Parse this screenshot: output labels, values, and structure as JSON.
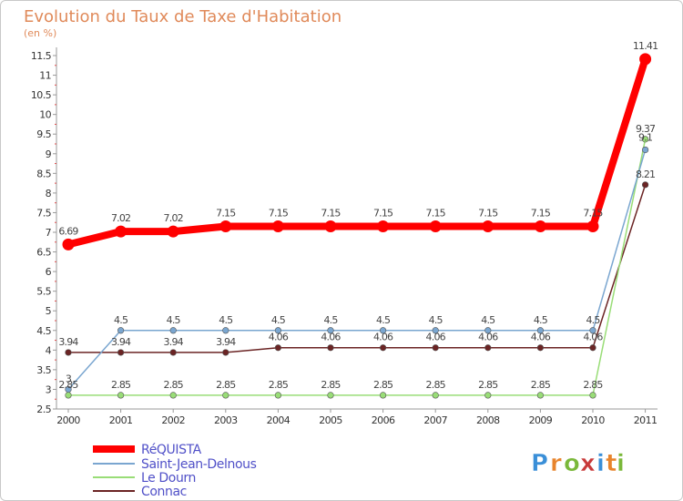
{
  "chart_data": {
    "type": "line",
    "title": "Evolution du Taux de Taxe d'Habitation",
    "subtitle": "(en %)",
    "xlabel": "",
    "ylabel": "",
    "ylim": [
      2.5,
      11.5
    ],
    "yticks": [
      "2.5",
      "3",
      "3.5",
      "4",
      "4.5",
      "5",
      "5.5",
      "6",
      "6.5",
      "7",
      "7.5",
      "8",
      "8.5",
      "9",
      "9.5",
      "10",
      "10.5",
      "11",
      "11.5"
    ],
    "categories": [
      "2000",
      "2001",
      "2002",
      "2003",
      "2004",
      "2005",
      "2006",
      "2007",
      "2008",
      "2009",
      "2010",
      "2011"
    ],
    "grid": false,
    "legend_position": "bottom-left",
    "series": [
      {
        "name": "RéQUISTA",
        "color": "#ff0000",
        "values": [
          6.69,
          7.02,
          7.02,
          7.15,
          7.15,
          7.15,
          7.15,
          7.15,
          7.15,
          7.15,
          7.15,
          11.41
        ],
        "labels": [
          "6.69",
          "7.02",
          "7.02",
          "7.15",
          "7.15",
          "7.15",
          "7.15",
          "7.15",
          "7.15",
          "7.15",
          "7.15",
          "11.41"
        ]
      },
      {
        "name": "Saint-Jean-Delnous",
        "color": "#7aa6d0",
        "values": [
          3,
          4.5,
          4.5,
          4.5,
          4.5,
          4.5,
          4.5,
          4.5,
          4.5,
          4.5,
          4.5,
          9.1
        ],
        "labels": [
          "3",
          "4.5",
          "4.5",
          "4.5",
          "4.5",
          "4.5",
          "4.5",
          "4.5",
          "4.5",
          "4.5",
          "4.5",
          "9.1"
        ]
      },
      {
        "name": "Le Dourn",
        "color": "#99dd77",
        "values": [
          2.85,
          2.85,
          2.85,
          2.85,
          2.85,
          2.85,
          2.85,
          2.85,
          2.85,
          2.85,
          2.85,
          9.37
        ],
        "labels": [
          "2.85",
          "2.85",
          "2.85",
          "2.85",
          "2.85",
          "2.85",
          "2.85",
          "2.85",
          "2.85",
          "2.85",
          "2.85",
          "9.37"
        ]
      },
      {
        "name": "Connac",
        "color": "#6b2424",
        "values": [
          3.94,
          3.94,
          3.94,
          3.94,
          4.06,
          4.06,
          4.06,
          4.06,
          4.06,
          4.06,
          4.06,
          8.21
        ],
        "labels": [
          "3.94",
          "3.94",
          "3.94",
          "3.94",
          "4.06",
          "4.06",
          "4.06",
          "4.06",
          "4.06",
          "4.06",
          "4.06",
          "8.21"
        ]
      }
    ]
  },
  "logo": {
    "letters": [
      "P",
      "r",
      "o",
      "x",
      "i",
      "t",
      "i"
    ],
    "colors": [
      "#3a8fd8",
      "#e8842c",
      "#7ab83a",
      "#c83a3a",
      "#3a8fd8",
      "#e8842c",
      "#7ab83a"
    ]
  }
}
